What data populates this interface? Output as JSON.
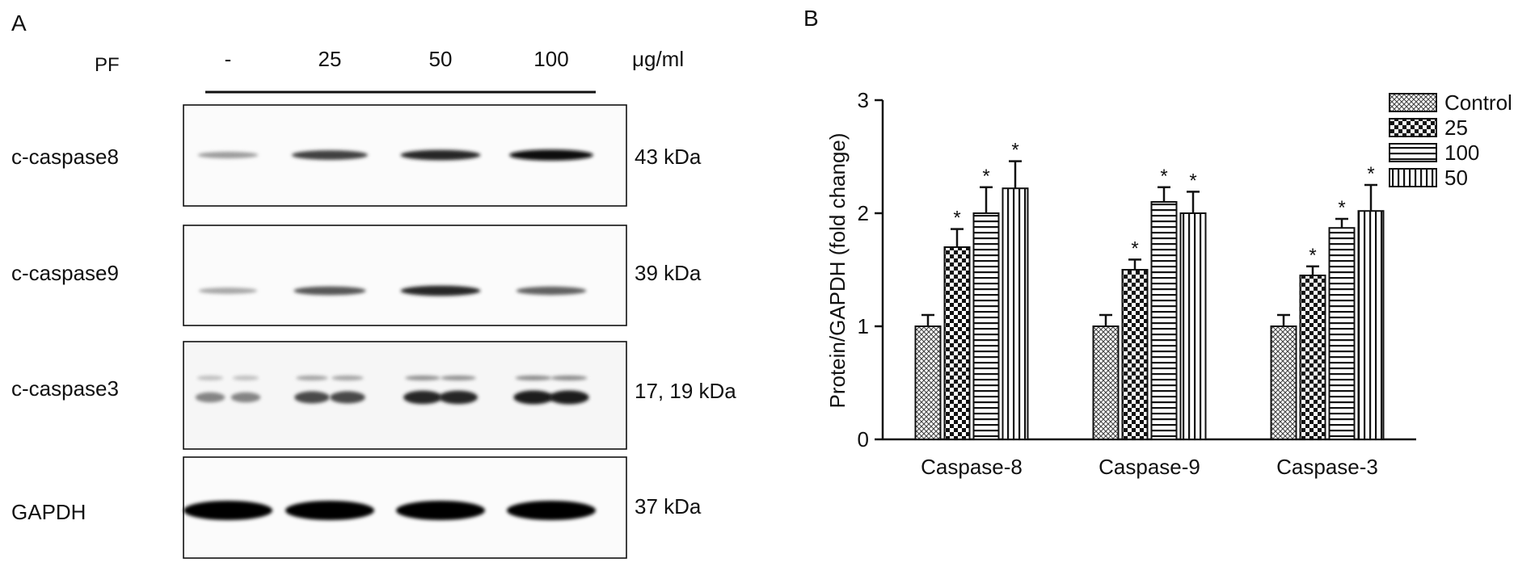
{
  "panel_a": {
    "label": "A",
    "treatment_label": "PF",
    "doses": [
      "-",
      "25",
      "50",
      "100"
    ],
    "unit": "μg/ml",
    "blots": [
      {
        "protein": "c-caspase8",
        "size": "43 kDa"
      },
      {
        "protein": "c-caspase9",
        "size": "39 kDa"
      },
      {
        "protein": "c-caspase3",
        "size": "17, 19 kDa"
      },
      {
        "protein": "GAPDH",
        "size": "37 kDa"
      }
    ],
    "band_intensity": [
      [
        0.35,
        0.75,
        0.85,
        0.95
      ],
      [
        0.3,
        0.65,
        0.85,
        0.6
      ],
      [
        0.45,
        0.7,
        0.85,
        0.9
      ],
      [
        1.0,
        1.0,
        1.0,
        1.0
      ]
    ]
  },
  "chart_data": {
    "type": "bar",
    "panel_label": "B",
    "categories": [
      "Caspase-8",
      "Caspase-9",
      "Caspase-3"
    ],
    "ylabel": "Protein/GAPDH (fold change)",
    "ylim": [
      0,
      3
    ],
    "yticks": [
      "0",
      "1",
      "2",
      "3"
    ],
    "legend_position": "top-right",
    "series": [
      {
        "name": "Control",
        "pattern": "crosshatch",
        "values": [
          1.0,
          1.0,
          1.0
        ],
        "errors": [
          0.1,
          0.1,
          0.1
        ],
        "sig": [
          "",
          "",
          ""
        ]
      },
      {
        "name": "25",
        "pattern": "checker",
        "values": [
          1.7,
          1.5,
          1.45
        ],
        "errors": [
          0.16,
          0.09,
          0.08
        ],
        "sig": [
          "*",
          "*",
          "*"
        ]
      },
      {
        "name": "100",
        "pattern": "horizontal",
        "values": [
          2.0,
          2.1,
          1.87
        ],
        "errors": [
          0.23,
          0.13,
          0.08
        ],
        "sig": [
          "*",
          "*",
          "*"
        ]
      },
      {
        "name": "50",
        "pattern": "vertical",
        "values": [
          2.22,
          2.0,
          2.02
        ],
        "errors": [
          0.24,
          0.19,
          0.23
        ],
        "sig": [
          "*",
          "*",
          "*"
        ]
      }
    ]
  }
}
